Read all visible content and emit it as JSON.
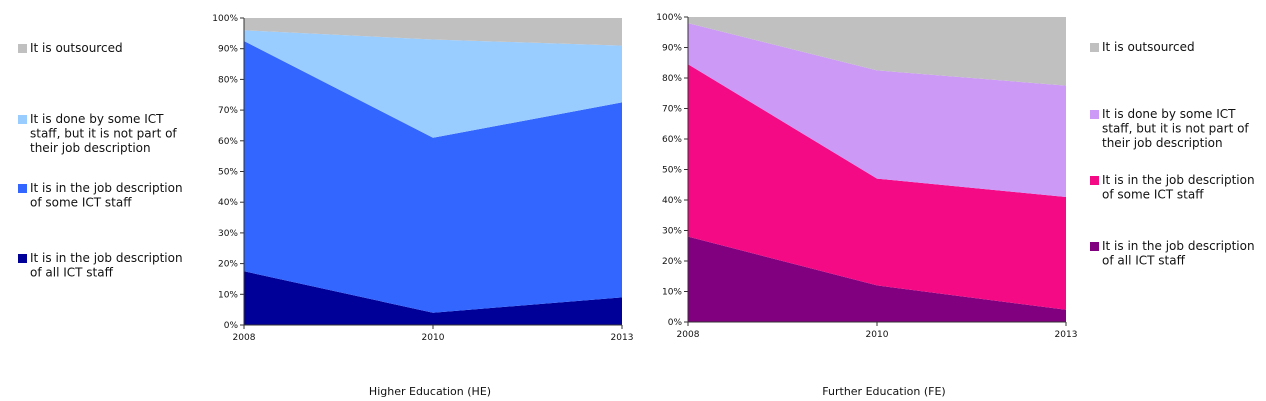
{
  "chart_data": [
    {
      "type": "area",
      "stacked": "percent",
      "title": "Higher Education (HE)",
      "x": [
        "2008",
        "2010",
        "2013"
      ],
      "ylim": [
        0,
        100
      ],
      "yticks": [
        "0%",
        "10%",
        "20%",
        "30%",
        "40%",
        "50%",
        "60%",
        "70%",
        "80%",
        "90%",
        "100%"
      ],
      "legend_position": "left",
      "series": [
        {
          "name": "It is in the job description of all ICT staff",
          "legend_lines": [
            "It is in the job description",
            "of all ICT staff"
          ],
          "color": "#000099",
          "values": [
            17.5,
            4,
            9
          ]
        },
        {
          "name": "It is in the job description of some ICT staff",
          "legend_lines": [
            "It is in the job description",
            "of some ICT staff"
          ],
          "color": "#3366ff",
          "values": [
            75,
            57,
            63.5
          ]
        },
        {
          "name": "It is done by some ICT staff, but it is not part of their job description",
          "legend_lines": [
            "It is done by some ICT",
            "staff, but it is not part of",
            "their job description"
          ],
          "color": "#99ccff",
          "values": [
            3.5,
            32,
            18.5
          ]
        },
        {
          "name": "It is outsourced",
          "legend_lines": [
            "It is outsourced"
          ],
          "color": "#c0c0c0",
          "values": [
            4,
            7,
            9
          ]
        }
      ]
    },
    {
      "type": "area",
      "stacked": "percent",
      "title": "Further Education (FE)",
      "x": [
        "2008",
        "2010",
        "2013"
      ],
      "ylim": [
        0,
        100
      ],
      "yticks": [
        "0%",
        "10%",
        "20%",
        "30%",
        "40%",
        "50%",
        "60%",
        "70%",
        "80%",
        "90%",
        "100%"
      ],
      "legend_position": "right",
      "series": [
        {
          "name": "It is in the job description of all ICT staff",
          "legend_lines": [
            "It is in the job description",
            "of all ICT staff"
          ],
          "color": "#800080",
          "values": [
            28,
            12,
            4
          ]
        },
        {
          "name": "It is in the job description of some ICT staff",
          "legend_lines": [
            "It is in the job description",
            "of some ICT staff"
          ],
          "color": "#f40a85",
          "values": [
            56.5,
            35,
            37
          ]
        },
        {
          "name": "It is done by some ICT staff, but it is not part of their job description",
          "legend_lines": [
            "It is done by some ICT",
            "staff, but it is not part of",
            "their job description"
          ],
          "color": "#cc99f7",
          "values": [
            13.5,
            35.5,
            36.5
          ]
        },
        {
          "name": "It is outsourced",
          "legend_lines": [
            "It is outsourced"
          ],
          "color": "#c0c0c0",
          "values": [
            2,
            17.5,
            22.5
          ]
        }
      ]
    }
  ]
}
